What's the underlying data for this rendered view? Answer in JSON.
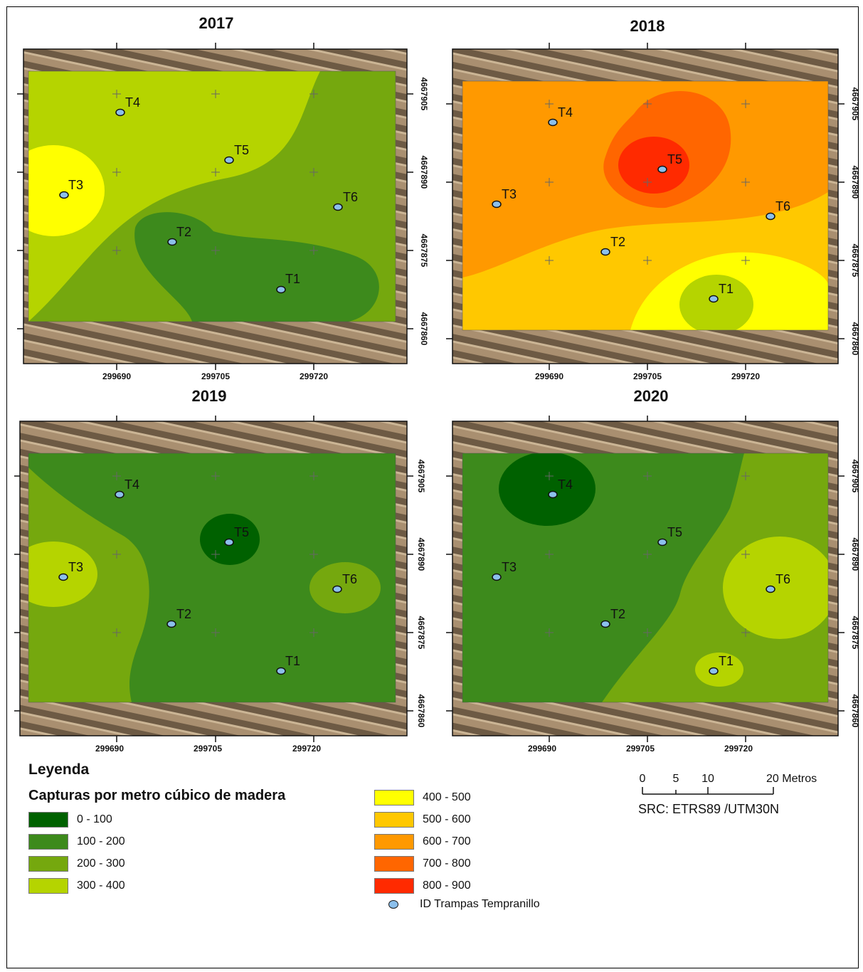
{
  "panels": [
    {
      "year": "2017",
      "x_ticks": [
        "299690",
        "299705",
        "299720"
      ],
      "y_ticks": [
        "4667905",
        "4667890",
        "4667875",
        "4667860"
      ]
    },
    {
      "year": "2018",
      "x_ticks": [
        "299690",
        "299705",
        "299720"
      ],
      "y_ticks": [
        "4667905",
        "4667890",
        "4667875",
        "4667860"
      ]
    },
    {
      "year": "2019",
      "x_ticks": [
        "299690",
        "299705",
        "299720"
      ],
      "y_ticks": [
        "4667905",
        "4667890",
        "4667875",
        "4667860"
      ]
    },
    {
      "year": "2020",
      "x_ticks": [
        "299690",
        "299705",
        "299720"
      ],
      "y_ticks": [
        "4667905",
        "4667890",
        "4667875",
        "4667860"
      ]
    }
  ],
  "traps": [
    "T1",
    "T2",
    "T3",
    "T4",
    "T5",
    "T6"
  ],
  "legend": {
    "title": "Leyenda",
    "subtitle": "Capturas por metro cúbico de madera",
    "classes": [
      {
        "label": "0 - 100",
        "color": "#006100"
      },
      {
        "label": "100 - 200",
        "color": "#3d8a1c"
      },
      {
        "label": "200 - 300",
        "color": "#75a80e"
      },
      {
        "label": "300 - 400",
        "color": "#b5d400"
      },
      {
        "label": "400 - 500",
        "color": "#ffff00"
      },
      {
        "label": "500 - 600",
        "color": "#ffc800"
      },
      {
        "label": "600 - 700",
        "color": "#ff9900"
      },
      {
        "label": "700 - 800",
        "color": "#ff6600"
      },
      {
        "label": "800 - 900",
        "color": "#ff2a00"
      }
    ],
    "trap_label": "ID Trampas Tempranillo"
  },
  "scale_bar": {
    "ticks": [
      "0",
      "5",
      "10",
      "20 Metros"
    ]
  },
  "crs": "SRC: ETRS89 /UTM30N"
}
